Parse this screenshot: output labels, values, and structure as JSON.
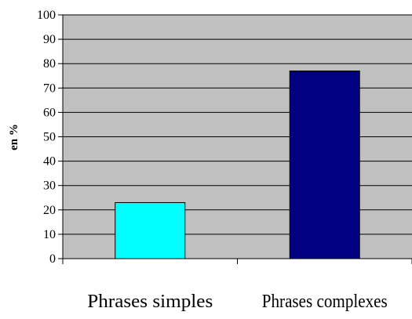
{
  "chart_data": {
    "type": "bar",
    "title": "",
    "xlabel": "",
    "ylabel": "en %",
    "categories": [
      "Phrases simples",
      "Phrases complexes"
    ],
    "series": [
      {
        "values": [
          23,
          77
        ]
      }
    ],
    "bar_colors": [
      "#00ffff",
      "#000080"
    ],
    "ylim": [
      0,
      100
    ],
    "yticks": [
      0,
      10,
      20,
      30,
      40,
      50,
      60,
      70,
      80,
      90,
      100
    ],
    "grid": true,
    "plot_background": "#c0c0c0",
    "legend": "none"
  }
}
